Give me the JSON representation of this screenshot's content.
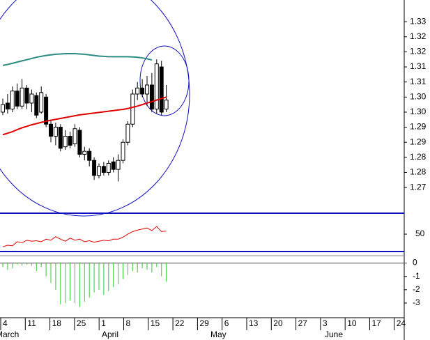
{
  "chart_data": {
    "type": "candlestick",
    "open": [
      1.3,
      1.303,
      1.301,
      1.307,
      1.302,
      1.308,
      1.303,
      1.3055,
      1.3,
      1.305,
      1.296,
      1.292,
      1.295,
      1.2885,
      1.292,
      1.2895,
      1.294,
      1.286,
      1.287,
      1.284,
      1.279,
      1.282,
      1.28,
      1.2835,
      1.281,
      1.284,
      1.29,
      1.296,
      1.306,
      1.308,
      1.306,
      1.309,
      1.301,
      1.315,
      1.301
    ],
    "close": [
      1.3025,
      1.301,
      1.307,
      1.302,
      1.308,
      1.303,
      1.306,
      1.299,
      1.3065,
      1.296,
      1.292,
      1.295,
      1.288,
      1.292,
      1.289,
      1.2945,
      1.286,
      1.287,
      1.284,
      1.279,
      1.282,
      1.28,
      1.283,
      1.281,
      1.284,
      1.29,
      1.296,
      1.306,
      1.308,
      1.306,
      1.309,
      1.301,
      1.316,
      1.3,
      1.304
    ],
    "high": [
      1.3045,
      1.306,
      1.3085,
      1.3095,
      1.311,
      1.309,
      1.3075,
      1.3065,
      1.3085,
      1.306,
      1.2975,
      1.2965,
      1.296,
      1.294,
      1.2935,
      1.296,
      1.295,
      1.2885,
      1.288,
      1.285,
      1.283,
      1.2835,
      1.284,
      1.285,
      1.286,
      1.291,
      1.297,
      1.3075,
      1.31,
      1.311,
      1.312,
      1.313,
      1.3175,
      1.317,
      1.309
    ],
    "low": [
      1.299,
      1.2995,
      1.3,
      1.301,
      1.301,
      1.301,
      1.3,
      1.298,
      1.2995,
      1.295,
      1.29,
      1.289,
      1.287,
      1.2875,
      1.288,
      1.2885,
      1.285,
      1.284,
      1.282,
      1.2775,
      1.278,
      1.279,
      1.279,
      1.28,
      1.277,
      1.283,
      1.289,
      1.295,
      1.304,
      1.305,
      1.302,
      1.3,
      1.2995,
      1.299,
      1.3
    ],
    "series": [
      {
        "color": "#e00000",
        "values": [
          1.2925,
          1.293,
          1.2935,
          1.2942,
          1.2948,
          1.2953,
          1.2958,
          1.2962,
          1.2966,
          1.297,
          1.2973,
          1.2976,
          1.2979,
          1.2982,
          1.2985,
          1.2988,
          1.2991,
          1.2993,
          1.2995,
          1.2997,
          1.2999,
          1.3001,
          1.3003,
          1.3005,
          1.3007,
          1.3009,
          1.3012,
          1.3016,
          1.302,
          1.3025,
          1.303,
          1.3035,
          1.304,
          1.3045,
          1.305
        ]
      },
      {
        "color": "#2a8c80",
        "values": [
          1.3155,
          1.3158,
          1.3162,
          1.3166,
          1.317,
          1.3174,
          1.3178,
          1.3182,
          1.3185,
          1.3188,
          1.319,
          1.3192,
          1.3193,
          1.3194,
          1.3194,
          1.3194,
          1.3193,
          1.3192,
          1.319,
          1.3188,
          1.3186,
          1.3185,
          1.3184,
          1.3184,
          1.3184,
          1.3184,
          1.3184,
          1.3183,
          1.3182,
          1.318,
          1.3177,
          1.3173,
          null,
          null,
          null
        ]
      }
    ],
    "ylim": [
      1.2667,
      1.3372
    ],
    "yticks": [
      {
        "value": 1.33,
        "label": "1.33"
      },
      {
        "value": 1.325,
        "label": "1.32"
      },
      {
        "value": 1.32,
        "label": "1.32"
      },
      {
        "value": 1.315,
        "label": "1.31"
      },
      {
        "value": 1.31,
        "label": "1.31"
      },
      {
        "value": 1.305,
        "label": "1.30"
      },
      {
        "value": 1.3,
        "label": "1.30"
      },
      {
        "value": 1.295,
        "label": "1.29"
      },
      {
        "value": 1.29,
        "label": "1.29"
      },
      {
        "value": 1.285,
        "label": "1.28"
      },
      {
        "value": 1.28,
        "label": "1.28"
      },
      {
        "value": 1.275,
        "label": "1.27"
      }
    ],
    "oscillator": {
      "color": "#e00000",
      "values": [
        25,
        28,
        27,
        35,
        33,
        38,
        36,
        37,
        35,
        40,
        38,
        45,
        40,
        36,
        42,
        38,
        40,
        35,
        37,
        34,
        36,
        38,
        37,
        40,
        40,
        44,
        50,
        55,
        58,
        60,
        62,
        57,
        65,
        55,
        56
      ],
      "ylim": [
        17,
        90
      ],
      "yticks": [
        50
      ]
    },
    "histogram": {
      "color": "#33cc33",
      "values": [
        -0.3,
        -0.5,
        -0.4,
        -0.1,
        -0.2,
        -0.1,
        -0.2,
        -0.6,
        -0.3,
        -1.0,
        -1.5,
        -2.0,
        -3.1,
        -3.0,
        -2.8,
        -3.0,
        -3.3,
        -2.9,
        -2.6,
        -2.2,
        -2.0,
        -2.4,
        -2.1,
        -1.8,
        -1.6,
        -1.2,
        -0.9,
        -0.6,
        -0.7,
        -0.4,
        -0.5,
        -0.7,
        -0.3,
        -1.0,
        -1.4
      ],
      "ylim": [
        -4.1,
        0.5
      ],
      "yticks": [
        0,
        -1,
        -2,
        -3
      ]
    },
    "x_tick_labels": [
      "4",
      "11",
      "18",
      "25",
      "1",
      "8",
      "15",
      "22",
      "29",
      "6",
      "13",
      "20",
      "27",
      "3",
      "10",
      "17",
      "24"
    ],
    "months": [
      "March",
      "April",
      "May",
      "June"
    ]
  }
}
